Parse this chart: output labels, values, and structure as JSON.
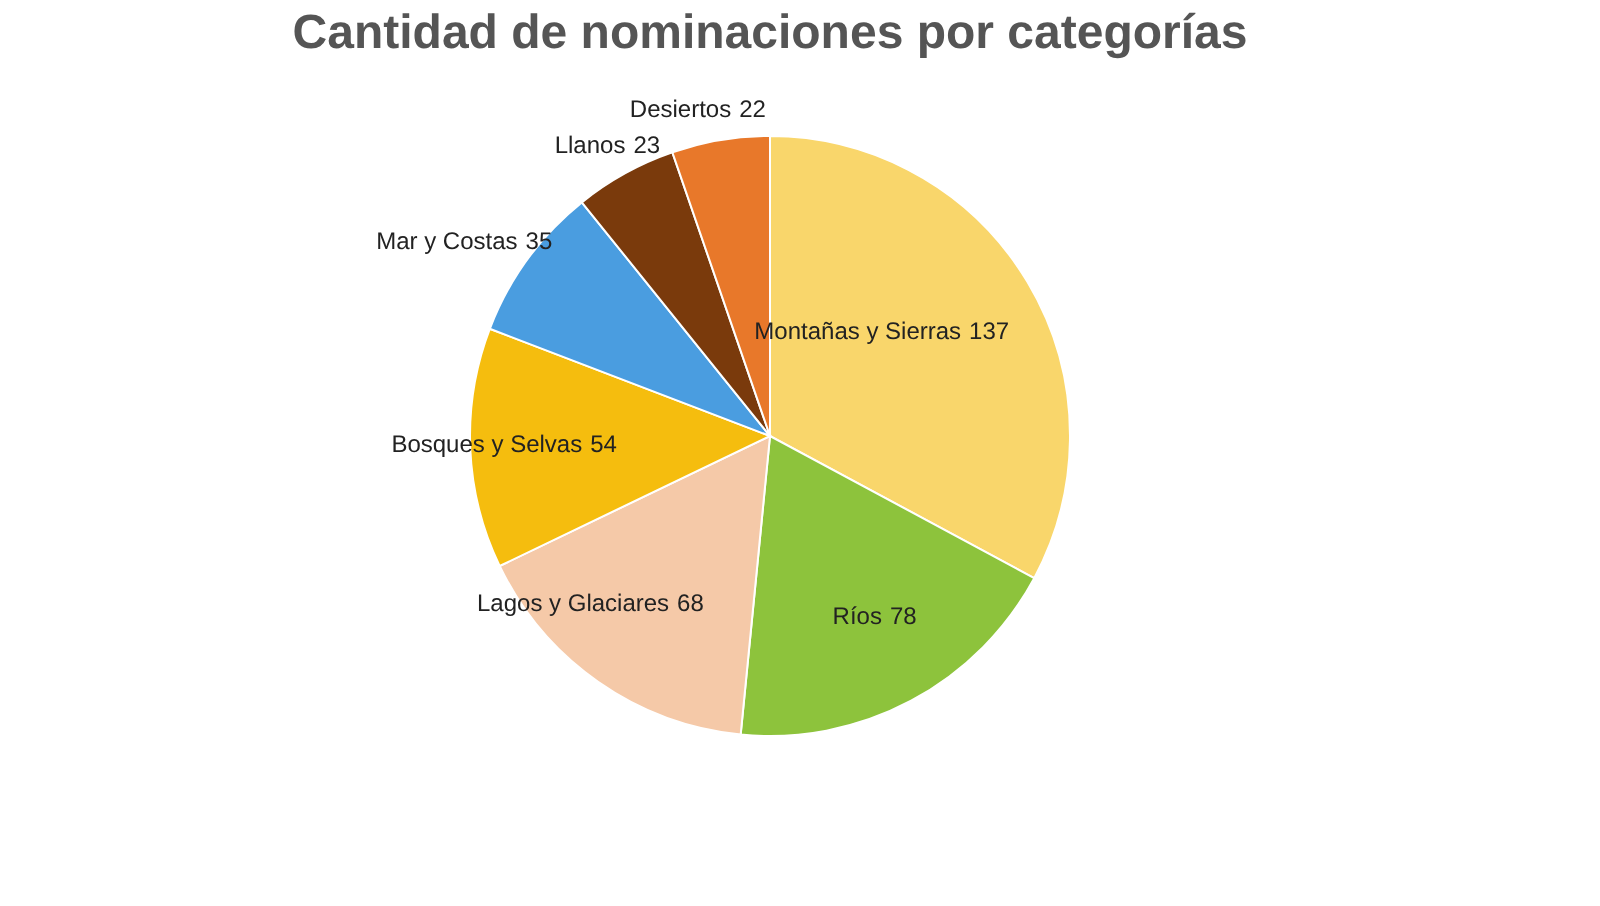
{
  "chart_data": {
    "type": "pie",
    "title": "Cantidad de nominaciones por categorías",
    "categories": [
      "Montañas y Sierras",
      "Ríos",
      "Lagos y Glaciares",
      "Bosques y Selvas",
      "Mar y Costas",
      "Llanos",
      "Desiertos"
    ],
    "values": [
      137,
      78,
      68,
      54,
      35,
      23,
      22
    ],
    "colors": [
      "#f9d66b",
      "#8dc33c",
      "#f5c9a8",
      "#f5bd0e",
      "#4a9de0",
      "#7a3a0c",
      "#e8782a"
    ],
    "data_labels": true,
    "legend": false
  }
}
